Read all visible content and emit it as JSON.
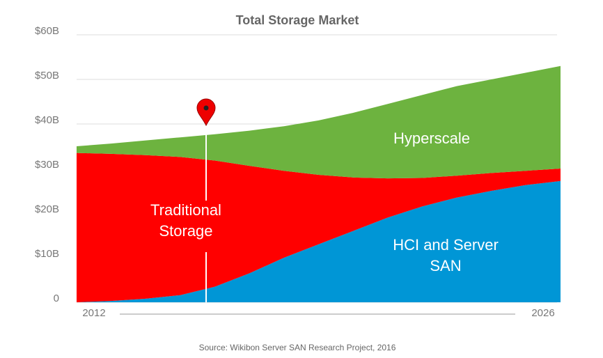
{
  "chart_data": {
    "type": "stacked_area",
    "title": "Total Storage Market",
    "categories": [
      "2012",
      null,
      null,
      null,
      null,
      null,
      null,
      null,
      null,
      null,
      null,
      null,
      null,
      null,
      "2026"
    ],
    "series": [
      {
        "name": "HCI and Server SAN",
        "color": "#0096d6",
        "values": [
          0,
          0.3,
          0.8,
          1.6,
          3.5,
          6.5,
          10,
          13,
          16,
          19,
          21.5,
          23.5,
          25,
          26.3,
          27.2
        ]
      },
      {
        "name": "Traditional Storage",
        "color": "#ff0000",
        "values": [
          33.5,
          33,
          32.2,
          31,
          28.3,
          24.1,
          19.5,
          15.6,
          12,
          8.8,
          6.4,
          4.9,
          4,
          3.2,
          2.8
        ]
      },
      {
        "name": "Hyperscale",
        "color": "#6db33f",
        "values": [
          1.5,
          2.3,
          3.3,
          4.4,
          5.9,
          7.9,
          10,
          12.2,
          14.5,
          16.7,
          18.6,
          20.1,
          21,
          22,
          23
        ]
      }
    ],
    "ylim": [
      0,
      60
    ],
    "yticks": [
      0,
      {
        "value": 10,
        "label": "$10B"
      },
      {
        "value": 20,
        "label": "$20B"
      },
      {
        "value": 30,
        "label": "$30B"
      },
      {
        "value": 40,
        "label": "$40B"
      },
      {
        "value": 50,
        "label": "$50B"
      },
      {
        "value": 60,
        "label": "$60B"
      }
    ],
    "grid": true,
    "source": "Source: Wikibon Server  SAN Research  Project, 2016"
  }
}
